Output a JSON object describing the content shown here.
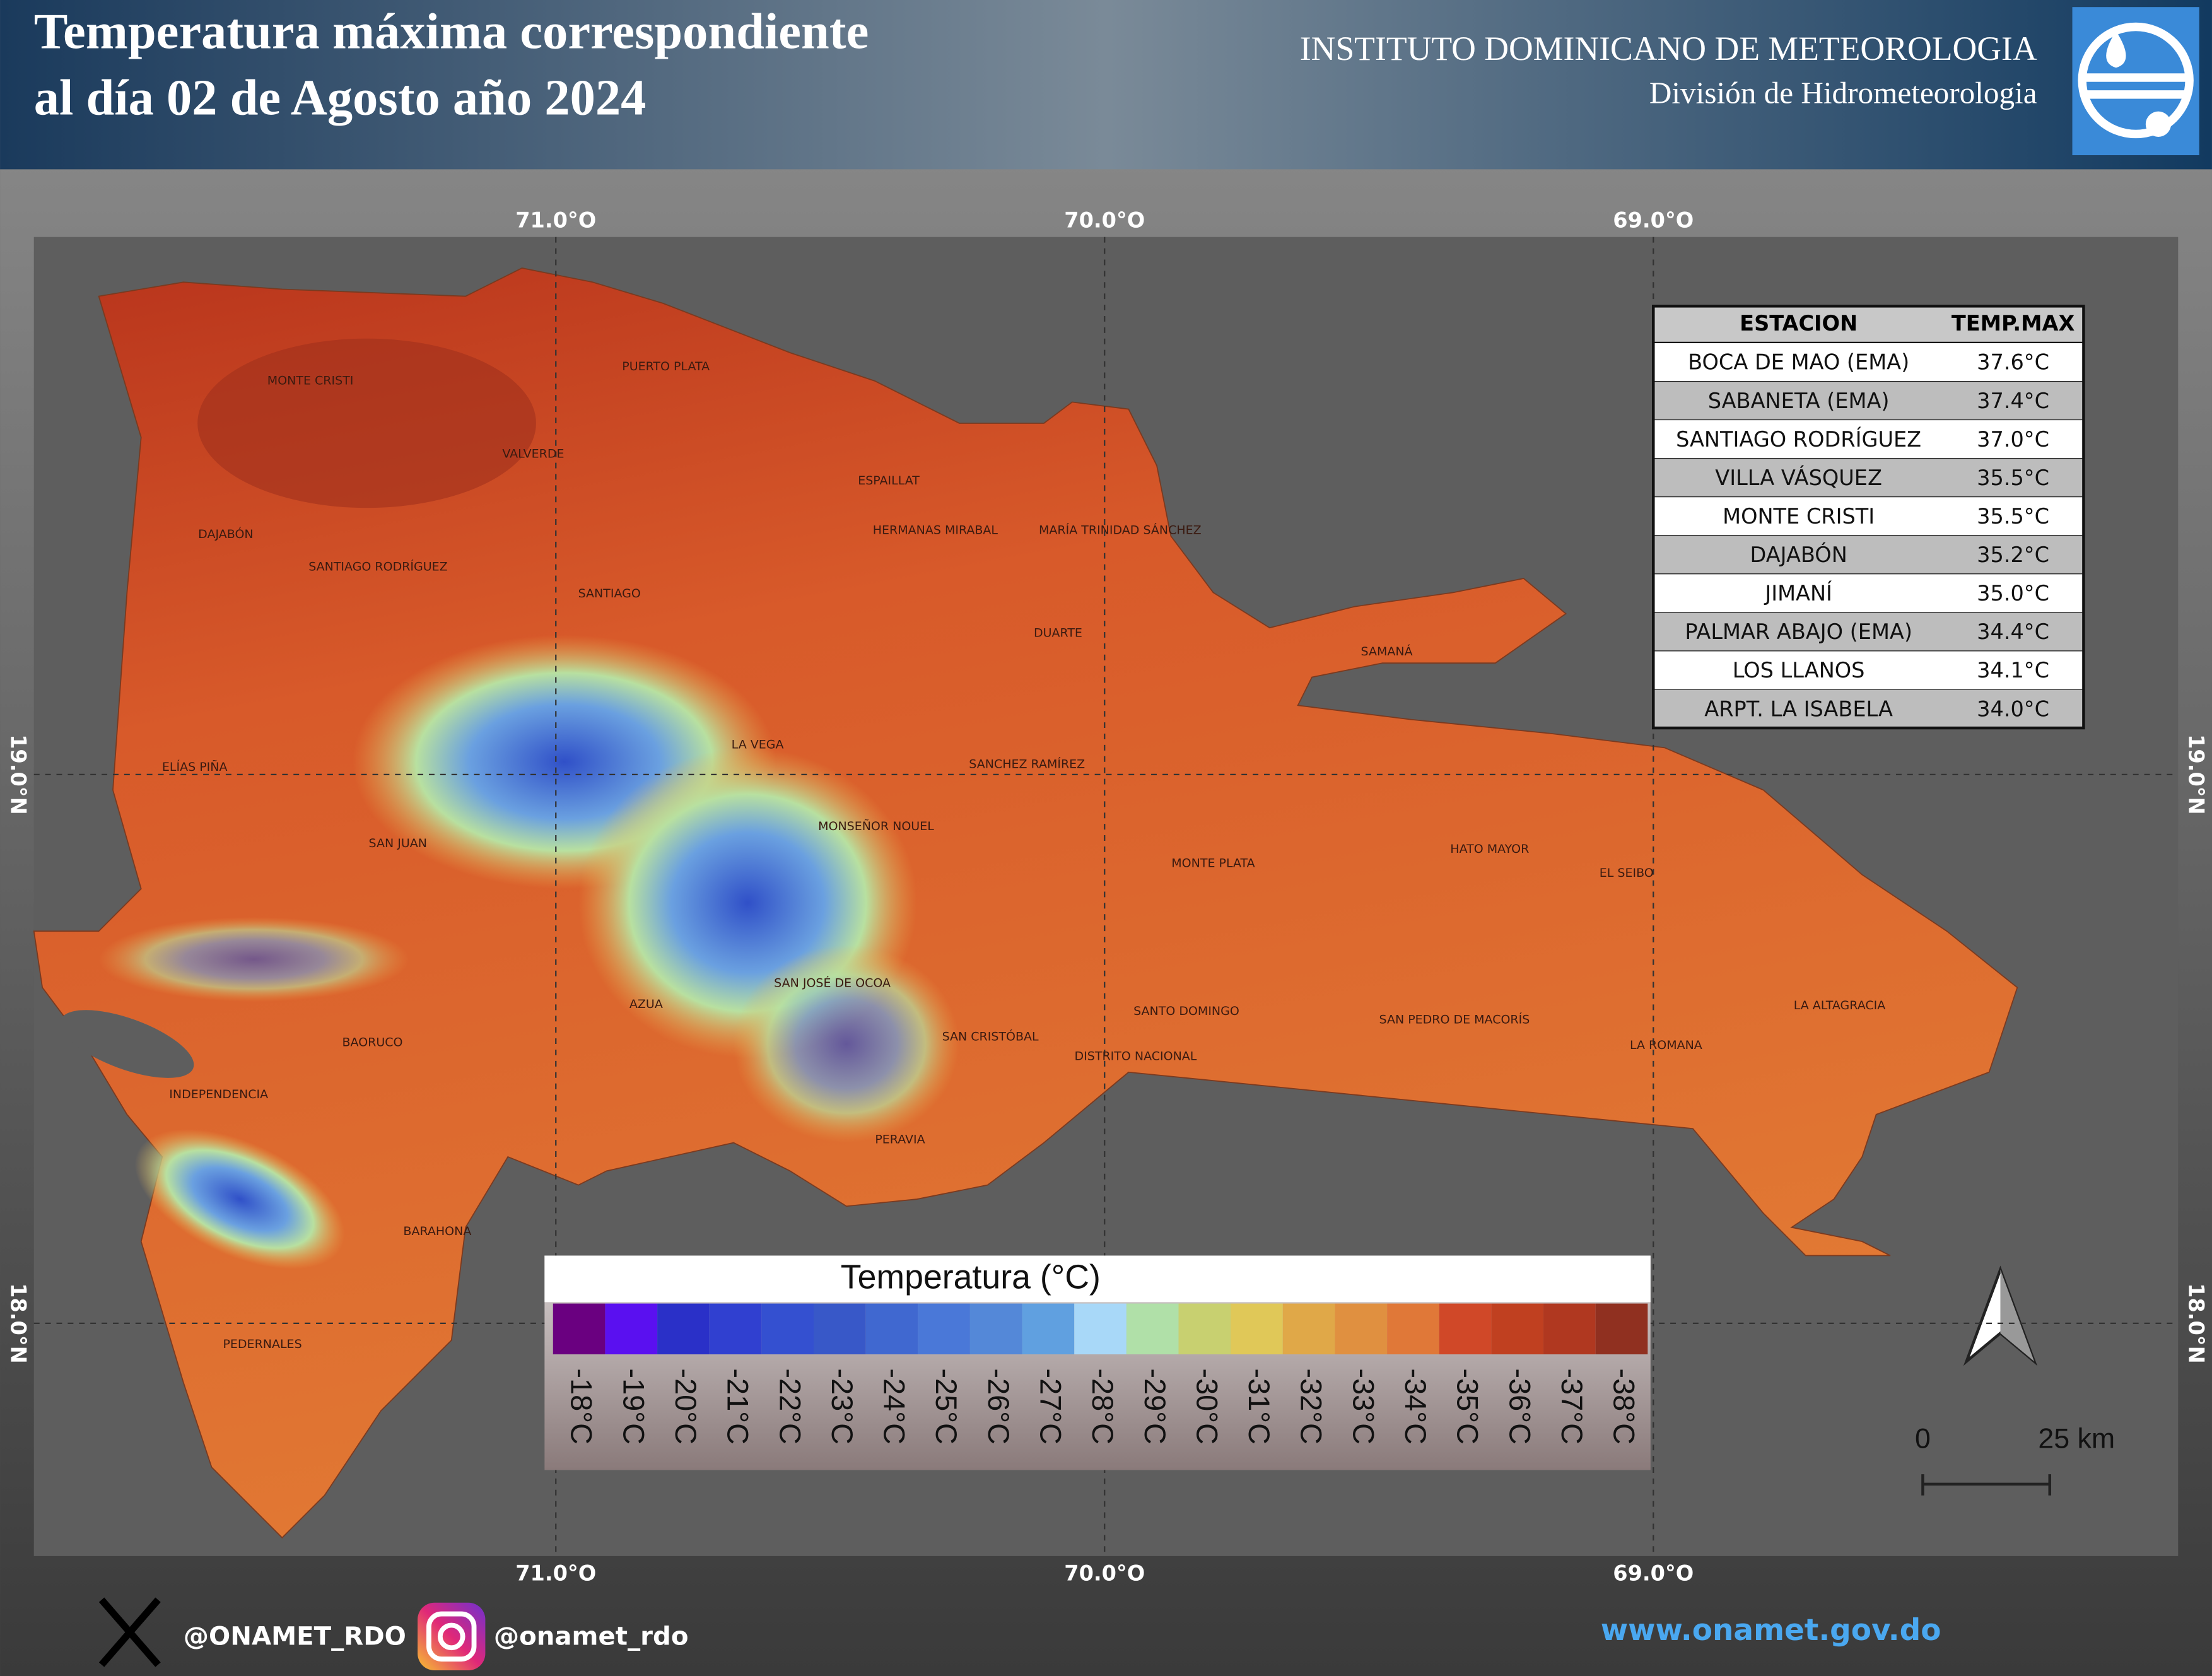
{
  "header": {
    "title_lines": [
      "Temperatura máxima correspondiente",
      "al día 02 de Agosto año 2024"
    ],
    "institute": "INSTITUTO DOMINICANO DE METEOROLOGIA",
    "division": "División de Hidrometeorologia"
  },
  "map": {
    "longitude_labels": [
      "71.0°O",
      "70.0°O",
      "69.0°O"
    ],
    "latitude_labels": [
      "19.0°N",
      "18.0°N"
    ],
    "province_labels": [
      "MONTE CRISTI",
      "PUERTO PLATA",
      "VALVERDE",
      "ESPAILLAT",
      "HERMANAS MIRABAL",
      "MARÍA TRINIDAD SÁNCHEZ",
      "DAJABÓN",
      "SANTIAGO RODRÍGUEZ",
      "SANTIAGO",
      "DUARTE",
      "SAMANÁ",
      "LA VEGA",
      "SANCHEZ RAMÍREZ",
      "ELÍAS PIÑA",
      "MONSEÑOR NOUEL",
      "SAN JUAN",
      "MONTE PLATA",
      "HATO MAYOR",
      "EL SEIBO",
      "SAN JOSÉ DE OCOA",
      "AZUA",
      "LA ALTAGRACIA",
      "SANTO DOMINGO",
      "SAN PEDRO DE MACORÍS",
      "SAN CRISTÓBAL",
      "BAORUCO",
      "DISTRITO NACIONAL",
      "LA ROMANA",
      "INDEPENDENCIA",
      "PERAVIA",
      "BARAHONA",
      "PEDERNALES"
    ]
  },
  "table": {
    "header": [
      "ESTACION",
      "TEMP.MAX"
    ],
    "rows": [
      [
        "BOCA DE MAO (EMA)",
        "37.6°C"
      ],
      [
        "SABANETA (EMA)",
        "37.4°C"
      ],
      [
        "SANTIAGO RODRÍGUEZ",
        "37.0°C"
      ],
      [
        "VILLA VÁSQUEZ",
        "35.5°C"
      ],
      [
        "MONTE CRISTI",
        "35.5°C"
      ],
      [
        "DAJABÓN",
        "35.2°C"
      ],
      [
        "JIMANÍ",
        "35.0°C"
      ],
      [
        "PALMAR ABAJO (EMA)",
        "34.4°C"
      ],
      [
        "LOS LLANOS",
        "34.1°C"
      ],
      [
        "ARPT. LA ISABELA",
        "34.0°C"
      ]
    ]
  },
  "legend": {
    "title": "Temperatura (°C)",
    "items": [
      {
        "label": "-18°C",
        "color": "#6a0080"
      },
      {
        "label": "-19°C",
        "color": "#5a10f0"
      },
      {
        "label": "-20°C",
        "color": "#2a30c8"
      },
      {
        "label": "-21°C",
        "color": "#3040d0"
      },
      {
        "label": "-22°C",
        "color": "#3450d0"
      },
      {
        "label": "-23°C",
        "color": "#3858c8"
      },
      {
        "label": "-24°C",
        "color": "#4068d0"
      },
      {
        "label": "-25°C",
        "color": "#4a78d8"
      },
      {
        "label": "-26°C",
        "color": "#5488d8"
      },
      {
        "label": "-27°C",
        "color": "#60a0e0"
      },
      {
        "label": "-28°C",
        "color": "#a8d8f8"
      },
      {
        "label": "-29°C",
        "color": "#b0e0a8"
      },
      {
        "label": "-30°C",
        "color": "#c8d070"
      },
      {
        "label": "-31°C",
        "color": "#e0c858"
      },
      {
        "label": "-32°C",
        "color": "#e0a848"
      },
      {
        "label": "-33°C",
        "color": "#e09040"
      },
      {
        "label": "-34°C",
        "color": "#e07838"
      },
      {
        "label": "-35°C",
        "color": "#d04828"
      },
      {
        "label": "-36°C",
        "color": "#c04020"
      },
      {
        "label": "-37°C",
        "color": "#b03820"
      },
      {
        "label": "-38°C",
        "color": "#903020"
      }
    ]
  },
  "scale_bar": {
    "start": "0",
    "end": "25 km"
  },
  "footer": {
    "x_handle": "@ONAMET_RDO",
    "instagram_handle": "@onamet_rdo",
    "website": "www.onamet.gov.do"
  }
}
